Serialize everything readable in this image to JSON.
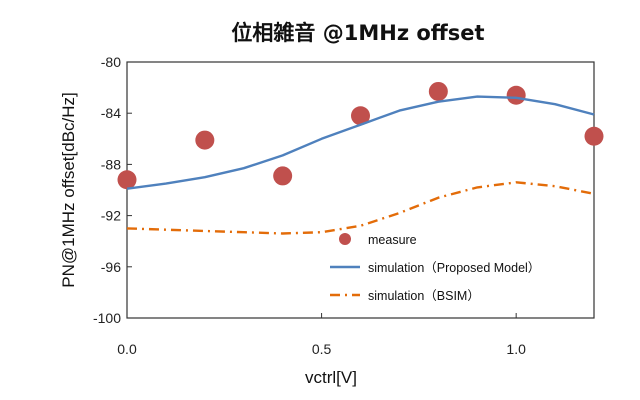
{
  "chart_data": {
    "type": "line",
    "title": "位相雑音 @1MHz offset",
    "xlabel": "vctrl[V]",
    "ylabel": "PN@1MHz offset[dBc/Hz]",
    "xlim": [
      0.0,
      1.2
    ],
    "ylim": [
      -100,
      -80
    ],
    "x_ticks": [
      0.0,
      0.5,
      1.0
    ],
    "x_tick_labels": [
      "0.0",
      "0.5",
      "1.0"
    ],
    "y_ticks": [
      -80,
      -84,
      -88,
      -92,
      -96,
      -100
    ],
    "y_tick_labels": [
      "-80",
      "-84",
      "-88",
      "-92",
      "-96",
      "-100"
    ],
    "grid": false,
    "legend_position": "bottom-center inside plot",
    "series": [
      {
        "name": "measure",
        "kind": "scatter",
        "color": "#c0504d",
        "x": [
          0.0,
          0.2,
          0.4,
          0.6,
          0.8,
          1.0,
          1.2
        ],
        "y": [
          -89.2,
          -86.1,
          -88.9,
          -84.2,
          -82.3,
          -82.6,
          -85.8
        ]
      },
      {
        "name": "simulation（Proposed Model）",
        "kind": "line",
        "style": "solid",
        "color": "#4f81bd",
        "x": [
          0.0,
          0.1,
          0.2,
          0.3,
          0.4,
          0.5,
          0.6,
          0.7,
          0.8,
          0.9,
          1.0,
          1.1,
          1.2
        ],
        "y": [
          -89.9,
          -89.5,
          -89.0,
          -88.3,
          -87.3,
          -86.0,
          -84.9,
          -83.8,
          -83.1,
          -82.7,
          -82.8,
          -83.3,
          -84.1
        ]
      },
      {
        "name": "simulation（BSIM）",
        "kind": "line",
        "style": "dash-dot",
        "color": "#e36c09",
        "x": [
          0.0,
          0.1,
          0.2,
          0.3,
          0.4,
          0.5,
          0.6,
          0.7,
          0.8,
          0.9,
          1.0,
          1.1,
          1.2
        ],
        "y": [
          -93.0,
          -93.1,
          -93.2,
          -93.3,
          -93.4,
          -93.3,
          -92.8,
          -91.8,
          -90.6,
          -89.8,
          -89.4,
          -89.7,
          -90.3
        ]
      }
    ]
  }
}
